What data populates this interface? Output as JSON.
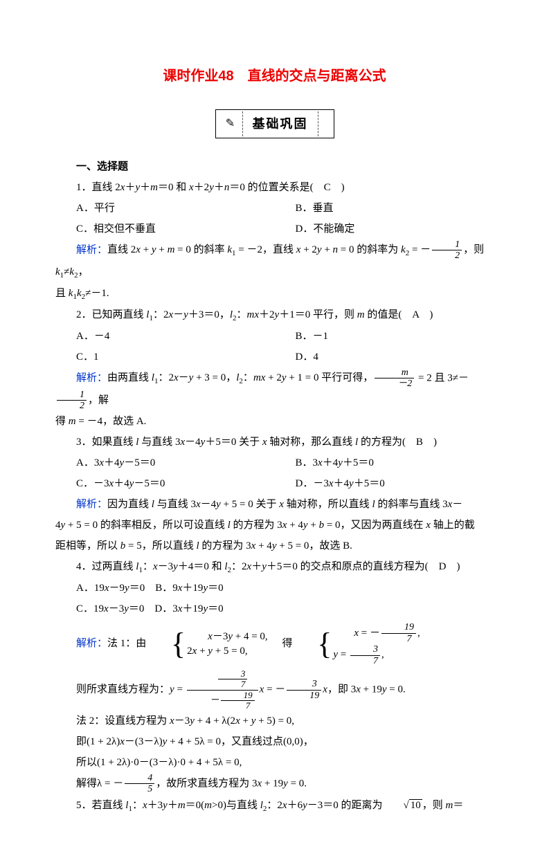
{
  "title": "课时作业48　直线的交点与距离公式",
  "banner": "基础巩固",
  "sectionHead": "一、选择题",
  "q1": {
    "stem": "1．直线 2<i>x</i>＋<i>y</i>＋<i>m</i>＝0 和 <i>x</i>＋2<i>y</i>＋<i>n</i>＝0 的位置关系是(　C　)",
    "A": "A．平行",
    "B": "B．垂直",
    "C": "C．相交但不垂直",
    "D": "D．不能确定",
    "exp_pre": "解析：",
    "exp": "直线 2<i>x</i> + <i>y</i> + <i>m</i> = 0 的斜率 <i>k</i><sub>1</sub> = －2，直线 <i>x</i> + 2<i>y</i> + <i>n</i> = 0 的斜率为 <i>k</i><sub>2</sub> = －",
    "exp_tail": "，则 <i>k</i><sub>1</sub>≠<i>k</i><sub>2</sub>，",
    "exp2": "且 <i>k</i><sub>1</sub><i>k</i><sub>2</sub>≠－1."
  },
  "q2": {
    "stem": "2．已知两直线 <i>l</i><sub>1</sub>：2<i>x</i>－<i>y</i>＋3＝0，<i>l</i><sub>2</sub>：<i>mx</i>＋2<i>y</i>＋1＝0 平行，则 <i>m</i> 的值是(　A　)",
    "A": "A．－4",
    "B": "B．－1",
    "C": "C．1",
    "D": "D．4",
    "exp_pre": "解析：",
    "exp1": "由两直线 <i>l</i><sub>1</sub>：2<i>x</i>－<i>y</i> + 3 = 0，<i>l</i><sub>2</sub>：<i>mx</i> + 2<i>y</i> + 1 = 0 平行可得，",
    "frac1_num": "<i>m</i>",
    "frac1_den": "－2",
    "exp_mid": " = 2 且 3≠－",
    "frac2_num": "1",
    "frac2_den": "2",
    "exp_tail": "，解",
    "exp2": "得 <i>m</i> = －4，故选 A."
  },
  "q3": {
    "stem": "3．如果直线 <i>l</i> 与直线 3<i>x</i>－4<i>y</i>＋5＝0 关于 <i>x</i> 轴对称，那么直线 <i>l</i> 的方程为(　B　)",
    "A": "A．3<i>x</i>＋4<i>y</i>－5＝0",
    "B": "B．3<i>x</i>＋4<i>y</i>＋5＝0",
    "C": "C．－3<i>x</i>＋4<i>y</i>－5＝0",
    "D": "D．－3<i>x</i>＋4<i>y</i>＋5＝0",
    "exp_pre": "解析：",
    "exp1": "因为直线 <i>l</i> 与直线 3<i>x</i>－4<i>y</i> + 5 = 0 关于 <i>x</i> 轴对称，所以直线 <i>l</i> 的斜率与直线 3<i>x</i>－",
    "exp2": "4<i>y</i> + 5 = 0 的斜率相反，所以可设直线 <i>l</i> 的方程为 3<i>x</i> + 4<i>y</i> + <i>b</i> = 0，又因为两直线在 <i>x</i> 轴上的截",
    "exp3": "距相等，所以 <i>b</i> = 5，所以直线 <i>l</i> 的方程为 3<i>x</i> + 4<i>y</i> + 5 = 0，故选 B."
  },
  "q4": {
    "stem": "4．过两直线 <i>l</i><sub>1</sub>：<i>x</i>－3<i>y</i>＋4＝0 和 <i>l</i><sub>2</sub>：2<i>x</i>＋<i>y</i>＋5＝0 的交点和原点的直线方程为(　D　)",
    "A": "A．19<i>x</i>－9<i>y</i>＝0",
    "B": "B．9<i>x</i>＋19<i>y</i>＝0",
    "C": "C．19<i>x</i>－3<i>y</i>＝0",
    "D": "D．3<i>x</i>＋19<i>y</i>＝0",
    "exp_pre": "解析：",
    "m1_label": "法 1：由",
    "sys1_l1": "<i>x</i>－3<i>y</i> + 4 = 0,",
    "sys1_l2": "2<i>x</i> + <i>y</i> + 5 = 0,",
    "m1_mid": "　得",
    "sys2_l1_pre": "<i>x</i> = －",
    "s2n1": "19",
    "s2d1": "7",
    "s2tail1": ",",
    "sys2_l2_pre": "<i>y</i> = ",
    "s2n2": "3",
    "s2d2": "7",
    "s2tail2": ",",
    "line2_pre": "则所求直线方程为：<i>y</i> = ",
    "bigfrac_top_num": "3",
    "bigfrac_top_den": "7",
    "bigfrac_bot_pre": "－",
    "bigfrac_bot_num": "19",
    "bigfrac_bot_den": "7",
    "line2_mid": "<i>x</i> = －",
    "frac319_num": "3",
    "frac319_den": "19",
    "line2_tail": "<i>x</i>，即 3<i>x</i> + 19<i>y</i> = 0.",
    "m2_l1": "法 2：设直线方程为 <i>x</i>－3<i>y</i> + 4 + λ(2<i>x</i> + <i>y</i> + 5) = 0,",
    "m2_l2": "即(1 + 2λ)<i>x</i>－(3－λ)<i>y</i> + 4 + 5λ = 0，又直线过点(0,0)，",
    "m2_l3": "所以(1 + 2λ)·0－(3－λ)·0 + 4 + 5λ = 0,",
    "m2_l4_pre": "解得λ = －",
    "m2_frac_num": "4",
    "m2_frac_den": "5",
    "m2_l4_tail": "，故所求直线方程为 3<i>x</i> + 19<i>y</i> = 0."
  },
  "q5": {
    "stem_pre": "5．若直线 <i>l</i><sub>1</sub>：<i>x</i>＋3<i>y</i>＋<i>m</i>＝0(<i>m</i>>0)与直线 <i>l</i><sub>2</sub>：2<i>x</i>＋6<i>y</i>－3＝0 的距离为",
    "sqrt": "10",
    "stem_tail": "，则 <i>m</i>＝"
  },
  "colors": {
    "title": "#ee0000",
    "answerLabel": "#0033cc",
    "text": "#000000",
    "bg": "#ffffff"
  }
}
